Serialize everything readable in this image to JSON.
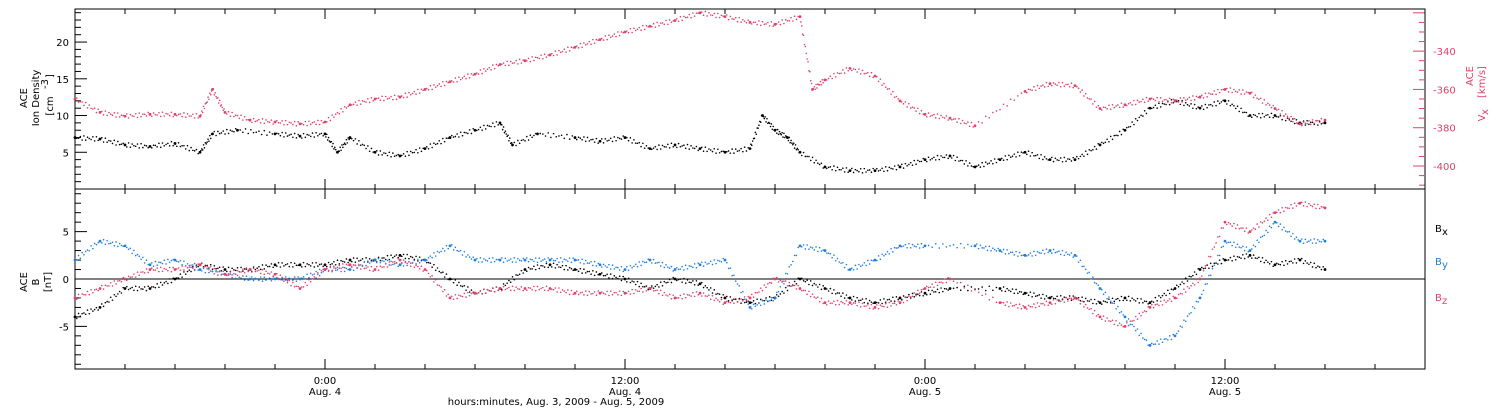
{
  "chart_data": [
    {
      "type": "scatter",
      "panel": "top",
      "ylabel_left": [
        "ACE",
        "Ion Density",
        "[cm",
        "-3",
        "]"
      ],
      "ylabel_right": [
        "ACE",
        "V",
        "x",
        "[km/s]"
      ],
      "yticks_left": [
        "5",
        "10",
        "15",
        "20"
      ],
      "yticks_right": [
        "-340",
        "-360",
        "-380",
        "-400"
      ],
      "ylim_left": [
        0,
        24.5
      ],
      "ylim_right": [
        -412,
        -318
      ],
      "x_range_hours": [
        -10,
        44
      ],
      "series": [
        {
          "axis": "left",
          "color": "#000000",
          "points": [
            [
              -10,
              7
            ],
            [
              -9,
              6.8
            ],
            [
              -8,
              6
            ],
            [
              -7,
              5.8
            ],
            [
              -6,
              6.2
            ],
            [
              -5,
              5
            ],
            [
              -4.5,
              7.5
            ],
            [
              -3.5,
              8
            ],
            [
              -2,
              7.5
            ],
            [
              -1,
              7.2
            ],
            [
              0,
              7.5
            ],
            [
              0.5,
              5
            ],
            [
              1,
              7
            ],
            [
              2,
              5
            ],
            [
              3,
              4.5
            ],
            [
              4,
              5.5
            ],
            [
              5,
              7
            ],
            [
              6,
              8
            ],
            [
              7,
              9
            ],
            [
              7.5,
              6
            ],
            [
              8.5,
              7.5
            ],
            [
              10,
              7
            ],
            [
              11,
              6.5
            ],
            [
              12,
              7
            ],
            [
              13,
              5.5
            ],
            [
              14,
              6
            ],
            [
              15,
              5.5
            ],
            [
              16,
              5
            ],
            [
              17,
              5.5
            ],
            [
              17.5,
              10
            ],
            [
              18,
              8
            ],
            [
              18.5,
              7
            ],
            [
              19,
              5
            ],
            [
              20,
              3
            ],
            [
              21,
              2.5
            ],
            [
              22,
              2.5
            ],
            [
              23,
              3
            ],
            [
              24,
              4
            ],
            [
              25,
              4.5
            ],
            [
              26,
              3
            ],
            [
              27,
              4
            ],
            [
              28,
              5
            ],
            [
              29,
              4
            ],
            [
              30,
              4
            ],
            [
              31,
              6
            ],
            [
              32,
              8
            ],
            [
              33,
              11
            ],
            [
              34,
              12
            ],
            [
              35,
              11
            ],
            [
              36,
              12
            ],
            [
              37,
              10
            ],
            [
              38,
              10
            ],
            [
              39,
              9
            ],
            [
              40,
              9
            ]
          ]
        },
        {
          "axis": "right",
          "color": "#e0406a",
          "points": [
            [
              -10,
              -365
            ],
            [
              -9,
              -372
            ],
            [
              -8,
              -374
            ],
            [
              -7,
              -373
            ],
            [
              -6,
              -373
            ],
            [
              -5,
              -374
            ],
            [
              -4.5,
              -360
            ],
            [
              -4,
              -372
            ],
            [
              -3,
              -376
            ],
            [
              -2,
              -377
            ],
            [
              -1,
              -378
            ],
            [
              0,
              -377
            ],
            [
              1,
              -368
            ],
            [
              2,
              -365
            ],
            [
              3,
              -364
            ],
            [
              4,
              -360
            ],
            [
              5,
              -356
            ],
            [
              6,
              -352
            ],
            [
              7,
              -347
            ],
            [
              8,
              -345
            ],
            [
              9,
              -342
            ],
            [
              10,
              -338
            ],
            [
              11,
              -334
            ],
            [
              12,
              -330
            ],
            [
              13,
              -327
            ],
            [
              14,
              -324
            ],
            [
              15,
              -320
            ],
            [
              16,
              -322
            ],
            [
              17,
              -325
            ],
            [
              18,
              -326
            ],
            [
              19,
              -322
            ],
            [
              19.5,
              -360
            ],
            [
              20,
              -355
            ],
            [
              21,
              -349
            ],
            [
              22,
              -353
            ],
            [
              23,
              -366
            ],
            [
              24,
              -373
            ],
            [
              25,
              -375
            ],
            [
              26,
              -379
            ],
            [
              28,
              -361
            ],
            [
              29,
              -357
            ],
            [
              30,
              -358
            ],
            [
              31,
              -370
            ],
            [
              32,
              -368
            ],
            [
              33,
              -365
            ],
            [
              34,
              -366
            ],
            [
              35,
              -364
            ],
            [
              36,
              -360
            ],
            [
              37,
              -362
            ],
            [
              38,
              -370
            ],
            [
              39,
              -378
            ],
            [
              40,
              -376
            ]
          ]
        }
      ]
    },
    {
      "type": "scatter",
      "panel": "bottom",
      "ylabel_left": [
        "ACE",
        "B",
        "[nT]"
      ],
      "yticks_left": [
        "5",
        "0",
        "-5"
      ],
      "ylim": [
        -9.5,
        9.5
      ],
      "legend": [
        {
          "name": "B",
          "sub": "x",
          "color": "#000000"
        },
        {
          "name": "B",
          "sub": "y",
          "color": "#1f7fe0"
        },
        {
          "name": "B",
          "sub": "z",
          "color": "#e0406a"
        }
      ],
      "series": [
        {
          "name": "Bx",
          "color": "#000000",
          "points": [
            [
              -10,
              -4
            ],
            [
              -9,
              -3
            ],
            [
              -8,
              -1
            ],
            [
              -7,
              -1
            ],
            [
              -6,
              0
            ],
            [
              -5,
              1.5
            ],
            [
              -4,
              1
            ],
            [
              -3,
              1
            ],
            [
              -2,
              1.5
            ],
            [
              -1,
              1.5
            ],
            [
              0,
              1.5
            ],
            [
              1,
              2
            ],
            [
              2,
              2
            ],
            [
              3,
              2.5
            ],
            [
              4,
              2
            ],
            [
              5,
              0
            ],
            [
              6,
              -1.5
            ],
            [
              7,
              -1
            ],
            [
              8,
              1
            ],
            [
              9,
              1.5
            ],
            [
              10,
              1
            ],
            [
              11,
              0.5
            ],
            [
              12,
              0
            ],
            [
              13,
              -1
            ],
            [
              14,
              0
            ],
            [
              15,
              -0.5
            ],
            [
              16,
              -2
            ],
            [
              17,
              -2.5
            ],
            [
              18,
              -2
            ],
            [
              19,
              0
            ],
            [
              20,
              -1
            ],
            [
              21,
              -2
            ],
            [
              22,
              -2.5
            ],
            [
              23,
              -2
            ],
            [
              24,
              -1.5
            ],
            [
              25,
              -1
            ],
            [
              27,
              -1
            ],
            [
              28,
              -1.5
            ],
            [
              29,
              -2
            ],
            [
              30,
              -2
            ],
            [
              31,
              -2.5
            ],
            [
              32,
              -2
            ],
            [
              33,
              -2.5
            ],
            [
              34,
              -1
            ],
            [
              35,
              1
            ],
            [
              36,
              2
            ],
            [
              37,
              2.5
            ],
            [
              38,
              1.5
            ],
            [
              39,
              2
            ],
            [
              40,
              1
            ]
          ]
        },
        {
          "name": "By",
          "color": "#1f7fe0",
          "points": [
            [
              -10,
              2
            ],
            [
              -9,
              4
            ],
            [
              -8,
              3.5
            ],
            [
              -7,
              1.5
            ],
            [
              -6,
              2
            ],
            [
              -5,
              1
            ],
            [
              -4,
              0.5
            ],
            [
              -3,
              0
            ],
            [
              -2,
              0
            ],
            [
              -1,
              0
            ],
            [
              0,
              1
            ],
            [
              1,
              1
            ],
            [
              2,
              2
            ],
            [
              3,
              1.5
            ],
            [
              4,
              2
            ],
            [
              5,
              3.5
            ],
            [
              6,
              2
            ],
            [
              7,
              2
            ],
            [
              8,
              2
            ],
            [
              9,
              2
            ],
            [
              10,
              2
            ],
            [
              11,
              1.5
            ],
            [
              12,
              1
            ],
            [
              13,
              2
            ],
            [
              14,
              1
            ],
            [
              15,
              1.5
            ],
            [
              16,
              2
            ],
            [
              17,
              -3
            ],
            [
              18,
              -2
            ],
            [
              19,
              3.5
            ],
            [
              20,
              3
            ],
            [
              21,
              1
            ],
            [
              22,
              2
            ],
            [
              23,
              3.5
            ],
            [
              24,
              3.5
            ],
            [
              26,
              3.5
            ],
            [
              27,
              3
            ],
            [
              28,
              2.5
            ],
            [
              29,
              3
            ],
            [
              30,
              2.5
            ],
            [
              31,
              -1
            ],
            [
              32,
              -4
            ],
            [
              33,
              -7
            ],
            [
              34,
              -6
            ],
            [
              35,
              -2
            ],
            [
              36,
              4
            ],
            [
              37,
              3
            ],
            [
              38,
              6
            ],
            [
              39,
              4
            ],
            [
              40,
              4
            ]
          ]
        },
        {
          "name": "Bz",
          "color": "#e0406a",
          "points": [
            [
              -10,
              -2
            ],
            [
              -9,
              -1
            ],
            [
              -8,
              0
            ],
            [
              -7,
              1
            ],
            [
              -6,
              1
            ],
            [
              -5,
              1.5
            ],
            [
              -4,
              0.5
            ],
            [
              -3,
              1
            ],
            [
              -2,
              0.5
            ],
            [
              -1,
              -1
            ],
            [
              0,
              1
            ],
            [
              1,
              1.5
            ],
            [
              2,
              1
            ],
            [
              3,
              2
            ],
            [
              4,
              1
            ],
            [
              5,
              -2
            ],
            [
              6,
              -1.5
            ],
            [
              7,
              -1
            ],
            [
              8,
              -1
            ],
            [
              9,
              -1
            ],
            [
              10,
              -1.5
            ],
            [
              11,
              -1.5
            ],
            [
              12,
              -1.5
            ],
            [
              13,
              -1
            ],
            [
              14,
              -2
            ],
            [
              15,
              -1.5
            ],
            [
              16,
              -2.5
            ],
            [
              17,
              -2
            ],
            [
              18,
              0
            ],
            [
              19,
              -1
            ],
            [
              20,
              -2.5
            ],
            [
              21,
              -2.5
            ],
            [
              22,
              -3
            ],
            [
              23,
              -2.5
            ],
            [
              24,
              -1
            ],
            [
              25,
              0
            ],
            [
              27,
              -2.5
            ],
            [
              28,
              -3
            ],
            [
              29,
              -2.5
            ],
            [
              30,
              -2
            ],
            [
              31,
              -4
            ],
            [
              32,
              -5
            ],
            [
              33,
              -3
            ],
            [
              34,
              -2
            ],
            [
              35,
              0
            ],
            [
              36,
              6
            ],
            [
              37,
              5
            ],
            [
              38,
              7
            ],
            [
              39,
              8
            ],
            [
              40,
              7.5
            ]
          ]
        }
      ]
    }
  ],
  "x_axis": {
    "major_ticks": [
      {
        "time": "0:00",
        "date": "Aug. 4",
        "hour": 0
      },
      {
        "time": "12:00",
        "date": "Aug. 4",
        "hour": 12
      },
      {
        "time": "0:00",
        "date": "Aug. 5",
        "hour": 24
      },
      {
        "time": "12:00",
        "date": "Aug. 5",
        "hour": 36
      }
    ],
    "label": "hours:minutes, Aug.  3, 2009 - Aug.  5, 2009"
  }
}
